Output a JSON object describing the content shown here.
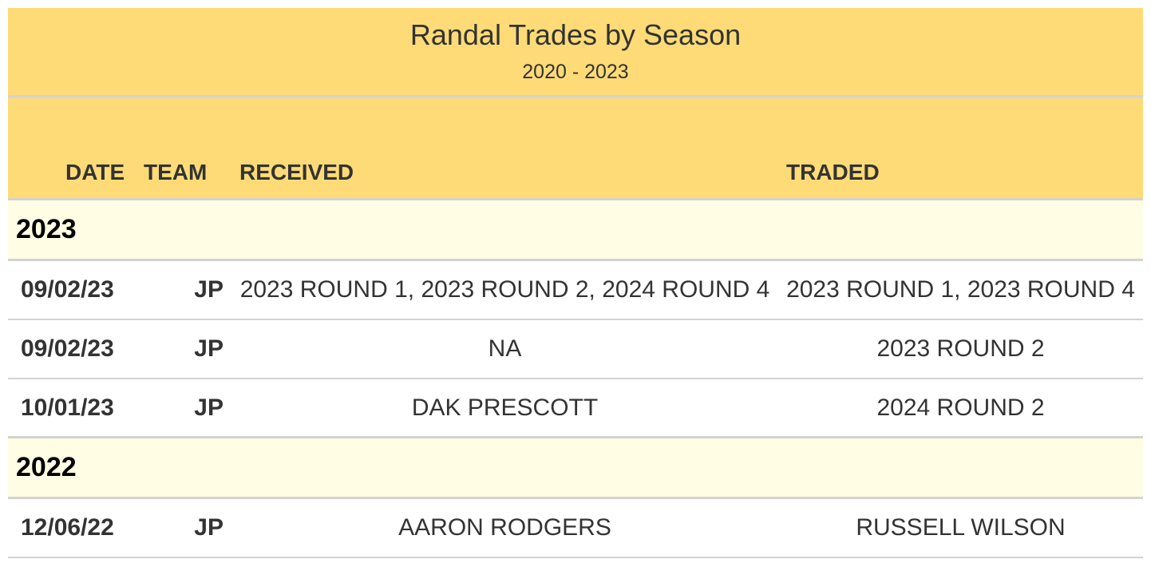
{
  "title": "Randal Trades by Season",
  "subtitle": "2020 - 2023",
  "columns": {
    "date": "DATE",
    "team": "TEAM",
    "received": "RECEIVED",
    "traded": "TRADED"
  },
  "groups": [
    {
      "label": "2023",
      "rows": [
        {
          "date": "09/02/23",
          "team": "JP",
          "received": "2023 ROUND 1, 2023 ROUND 2, 2024 ROUND 4",
          "traded": "2023 ROUND 1, 2023 ROUND 4"
        },
        {
          "date": "09/02/23",
          "team": "JP",
          "received": "NA",
          "traded": "2023 ROUND 2"
        },
        {
          "date": "10/01/23",
          "team": "JP",
          "received": "DAK PRESCOTT",
          "traded": "2024 ROUND 2"
        }
      ]
    },
    {
      "label": "2022",
      "rows": [
        {
          "date": "12/06/22",
          "team": "JP",
          "received": "AARON RODGERS",
          "traded": "RUSSELL WILSON"
        }
      ]
    }
  ],
  "colors": {
    "header_bg": "#fedb77",
    "group_bg": "#fffde3",
    "border": "#d3d3d3",
    "text": "#333333"
  }
}
